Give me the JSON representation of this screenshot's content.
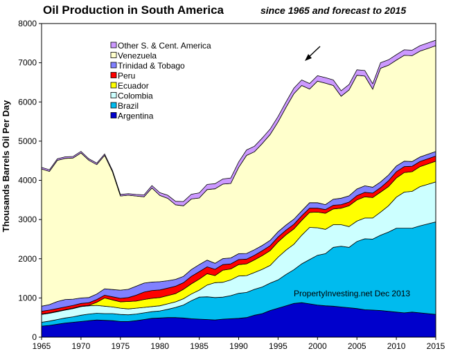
{
  "chart_data": {
    "type": "area",
    "stacked": true,
    "title": "Oil Production in South America",
    "subtitle": "since 1965 and forecast to 2015",
    "xlabel": "",
    "ylabel": "Thousands Barrels Oil Per Day",
    "xlim": [
      1965,
      2015
    ],
    "ylim": [
      0,
      8000
    ],
    "x_ticks": [
      1965,
      1970,
      1975,
      1980,
      1985,
      1990,
      1995,
      2000,
      2005,
      2010,
      2015
    ],
    "y_ticks": [
      0,
      1000,
      2000,
      3000,
      4000,
      5000,
      6000,
      7000,
      8000
    ],
    "grid": false,
    "legend_placement": "top-left",
    "annotation": "PropertyInvesting.net  Dec 2013",
    "x": [
      1965,
      1966,
      1967,
      1968,
      1969,
      1970,
      1971,
      1972,
      1973,
      1974,
      1975,
      1976,
      1977,
      1978,
      1979,
      1980,
      1981,
      1982,
      1983,
      1984,
      1985,
      1986,
      1987,
      1988,
      1989,
      1990,
      1991,
      1992,
      1993,
      1994,
      1995,
      1996,
      1997,
      1998,
      1999,
      2000,
      2001,
      2002,
      2003,
      2004,
      2005,
      2006,
      2007,
      2008,
      2009,
      2010,
      2011,
      2012,
      2013,
      2014,
      2015
    ],
    "series": [
      {
        "name": "Argentina",
        "color": "#0000cc",
        "values": [
          280,
          300,
          330,
          360,
          380,
          400,
          420,
          440,
          430,
          420,
          400,
          400,
          420,
          450,
          480,
          490,
          500,
          500,
          490,
          470,
          460,
          450,
          440,
          460,
          470,
          480,
          500,
          560,
          600,
          680,
          740,
          800,
          860,
          880,
          850,
          820,
          800,
          790,
          770,
          750,
          730,
          700,
          690,
          680,
          660,
          640,
          620,
          640,
          620,
          600,
          580
        ]
      },
      {
        "name": "Brazil",
        "color": "#00bbee",
        "values": [
          100,
          110,
          120,
          130,
          140,
          160,
          170,
          170,
          170,
          180,
          180,
          170,
          170,
          170,
          170,
          180,
          210,
          260,
          330,
          460,
          560,
          580,
          570,
          560,
          590,
          640,
          640,
          660,
          680,
          700,
          720,
          800,
          860,
          990,
          1130,
          1270,
          1330,
          1500,
          1550,
          1540,
          1710,
          1810,
          1810,
          1920,
          2020,
          2140,
          2160,
          2140,
          2220,
          2290,
          2360
        ]
      },
      {
        "name": "Colombia",
        "color": "#ccffff",
        "values": [
          200,
          200,
          200,
          200,
          210,
          220,
          210,
          200,
          190,
          170,
          160,
          150,
          150,
          140,
          130,
          130,
          140,
          140,
          160,
          170,
          180,
          300,
          380,
          380,
          400,
          440,
          430,
          430,
          450,
          450,
          580,
          620,
          650,
          730,
          820,
          700,
          620,
          580,
          550,
          530,
          520,
          530,
          540,
          590,
          670,
          790,
          920,
          940,
          1000,
          1010,
          1020
        ]
      },
      {
        "name": "Ecuador",
        "color": "#ffff00",
        "values": [
          10,
          10,
          10,
          10,
          10,
          10,
          10,
          80,
          210,
          180,
          160,
          190,
          180,
          200,
          210,
          210,
          210,
          210,
          240,
          260,
          280,
          290,
          180,
          310,
          280,
          290,
          300,
          320,
          350,
          380,
          390,
          390,
          390,
          380,
          380,
          400,
          410,
          400,
          420,
          530,
          540,
          540,
          520,
          510,
          490,
          490,
          500,
          500,
          510,
          520,
          530
        ]
      },
      {
        "name": "Peru",
        "color": "#ff0000",
        "values": [
          70,
          70,
          70,
          70,
          70,
          70,
          70,
          70,
          70,
          80,
          90,
          100,
          150,
          190,
          200,
          195,
          190,
          190,
          170,
          190,
          190,
          175,
          160,
          140,
          130,
          130,
          120,
          120,
          125,
          125,
          125,
          120,
          120,
          115,
          110,
          100,
          95,
          95,
          90,
          95,
          110,
          115,
          115,
          115,
          150,
          160,
          150,
          140,
          130,
          130,
          130
        ]
      },
      {
        "name": "Trinidad & Tobago",
        "color": "#8080ff",
        "values": [
          130,
          140,
          180,
          190,
          160,
          140,
          130,
          140,
          165,
          185,
          210,
          210,
          230,
          230,
          215,
          210,
          190,
          175,
          160,
          175,
          180,
          170,
          155,
          155,
          150,
          150,
          145,
          140,
          135,
          135,
          135,
          130,
          130,
          125,
          140,
          140,
          125,
          155,
          165,
          160,
          170,
          165,
          150,
          145,
          145,
          145,
          140,
          120,
          115,
          115,
          115
        ]
      },
      {
        "name": "Venezuela",
        "color": "#ffffcc",
        "values": [
          3500,
          3400,
          3600,
          3600,
          3600,
          3700,
          3500,
          3300,
          3400,
          3000,
          2400,
          2400,
          2300,
          2200,
          2400,
          2200,
          2100,
          1900,
          1800,
          1800,
          1700,
          1800,
          1900,
          1900,
          1900,
          2200,
          2500,
          2500,
          2600,
          2700,
          2800,
          3000,
          3200,
          3200,
          2900,
          3100,
          3100,
          2900,
          2600,
          2700,
          2900,
          2800,
          2500,
          2900,
          2800,
          2700,
          2700,
          2700,
          2700,
          2700,
          2700
        ]
      },
      {
        "name": "Other S. & Cent. America",
        "color": "#cc99ff",
        "values": [
          40,
          40,
          40,
          40,
          40,
          40,
          40,
          40,
          40,
          40,
          40,
          40,
          40,
          50,
          60,
          70,
          80,
          90,
          110,
          120,
          130,
          130,
          130,
          130,
          140,
          140,
          140,
          140,
          140,
          140,
          140,
          140,
          140,
          140,
          140,
          140,
          140,
          140,
          140,
          140,
          140,
          140,
          140,
          140,
          140,
          140,
          140,
          140,
          140,
          140,
          140
        ]
      }
    ]
  }
}
